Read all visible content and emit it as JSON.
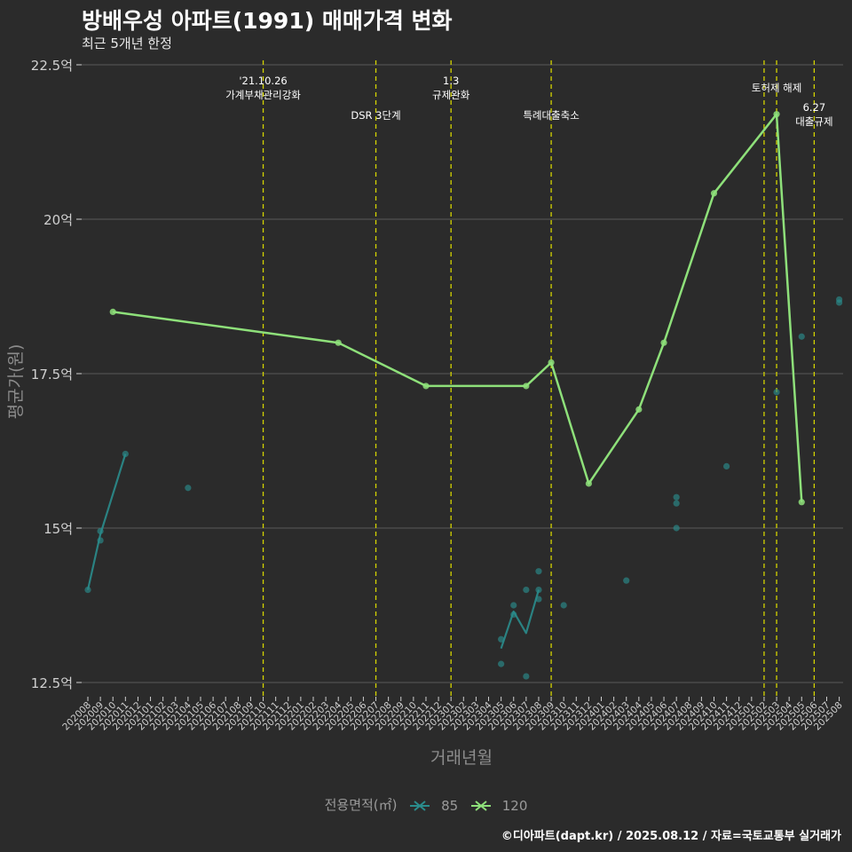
{
  "title": "방배우성 아파트(1991) 매매가격 변화",
  "subtitle": "최근 5개년 한정",
  "caption": "©디아파트(dapt.kr) / 2025.08.12 / 자료=국토교통부 실거래가",
  "colors": {
    "background": "#2b2b2b",
    "grid": "#5a5a5a",
    "axis_text": "#d0d0d0",
    "axis_title": "#8c8c8c",
    "event_line": "#d4d400",
    "series_85": "#2a8c8c",
    "series_120": "#8ee07a"
  },
  "chart_data": {
    "type": "line",
    "xlabel": "거래년월",
    "ylabel": "평균가(원)",
    "ylim": [
      12.2,
      22.5
    ],
    "yticks": [
      12.5,
      15,
      17.5,
      20,
      22.5
    ],
    "ytick_labels": [
      "12.5억",
      "15억",
      "17.5억",
      "20억",
      "22.5억"
    ],
    "categories": [
      "202008",
      "202009",
      "202010",
      "202011",
      "202012",
      "202101",
      "202102",
      "202103",
      "202104",
      "202105",
      "202106",
      "202107",
      "202108",
      "202109",
      "202110",
      "202111",
      "202112",
      "202201",
      "202202",
      "202203",
      "202204",
      "202205",
      "202206",
      "202207",
      "202208",
      "202209",
      "202210",
      "202211",
      "202212",
      "202301",
      "202302",
      "202303",
      "202304",
      "202305",
      "202306",
      "202307",
      "202308",
      "202309",
      "202310",
      "202311",
      "202312",
      "202401",
      "202402",
      "202403",
      "202404",
      "202405",
      "202406",
      "202407",
      "202408",
      "202409",
      "202410",
      "202411",
      "202412",
      "202501",
      "202502",
      "202503",
      "202504",
      "202505",
      "202506",
      "202507",
      "202508"
    ],
    "legend_title": "전용면적(㎡)",
    "events": [
      {
        "x": "202110",
        "label": [
          "'21.10.26",
          "가계부채관리강화"
        ],
        "row": 1
      },
      {
        "x": "202207",
        "label": [
          "DSR 3단계"
        ],
        "row": 2
      },
      {
        "x": "202301",
        "label": [
          "1.3",
          "규제완화"
        ],
        "row": 1
      },
      {
        "x": "202309",
        "label": [
          "특례대출축소"
        ],
        "row": 2
      },
      {
        "x": "202502",
        "label": [],
        "row": 1
      },
      {
        "x": "202503",
        "label": [
          "토허제 해제"
        ],
        "row": 1
      },
      {
        "x": "202506",
        "label": [
          "6.27",
          "대출규제"
        ],
        "row": 2
      }
    ],
    "series": [
      {
        "name": "85",
        "line": [
          [
            "202008",
            14.0
          ],
          [
            "202009",
            14.9
          ],
          [
            "202011",
            16.2
          ]
        ],
        "line2": [
          [
            "202305",
            13.05
          ],
          [
            "202306",
            13.65
          ],
          [
            "202307",
            13.3
          ],
          [
            "202308",
            14.0
          ]
        ],
        "points": [
          [
            "202008",
            14.0
          ],
          [
            "202009",
            14.8
          ],
          [
            "202009",
            14.95
          ],
          [
            "202011",
            16.2
          ],
          [
            "202104",
            15.65
          ],
          [
            "202305",
            12.8
          ],
          [
            "202305",
            13.2
          ],
          [
            "202306",
            13.6
          ],
          [
            "202306",
            13.75
          ],
          [
            "202307",
            12.6
          ],
          [
            "202307",
            14.0
          ],
          [
            "202308",
            13.85
          ],
          [
            "202308",
            14.0
          ],
          [
            "202308",
            14.3
          ],
          [
            "202310",
            13.75
          ],
          [
            "202403",
            14.15
          ],
          [
            "202407",
            15.0
          ],
          [
            "202407",
            15.4
          ],
          [
            "202407",
            15.5
          ],
          [
            "202411",
            16.0
          ],
          [
            "202503",
            17.2
          ],
          [
            "202505",
            18.1
          ],
          [
            "202508",
            18.65
          ],
          [
            "202508",
            18.7
          ]
        ]
      },
      {
        "name": "120",
        "line": [
          [
            "202010",
            18.5
          ],
          [
            "202204",
            18.0
          ],
          [
            "202211",
            17.3
          ],
          [
            "202307",
            17.3
          ],
          [
            "202309",
            17.68
          ],
          [
            "202312",
            15.72
          ],
          [
            "202404",
            16.92
          ],
          [
            "202406",
            18.0
          ],
          [
            "202410",
            20.42
          ],
          [
            "202503",
            21.7
          ],
          [
            "202505",
            15.42
          ]
        ],
        "points": [
          [
            "202010",
            18.5
          ],
          [
            "202204",
            18.0
          ],
          [
            "202211",
            17.3
          ],
          [
            "202307",
            17.3
          ],
          [
            "202309",
            17.68
          ],
          [
            "202312",
            15.72
          ],
          [
            "202404",
            16.92
          ],
          [
            "202406",
            18.0
          ],
          [
            "202410",
            20.42
          ],
          [
            "202503",
            21.7
          ],
          [
            "202505",
            15.42
          ]
        ]
      }
    ]
  }
}
